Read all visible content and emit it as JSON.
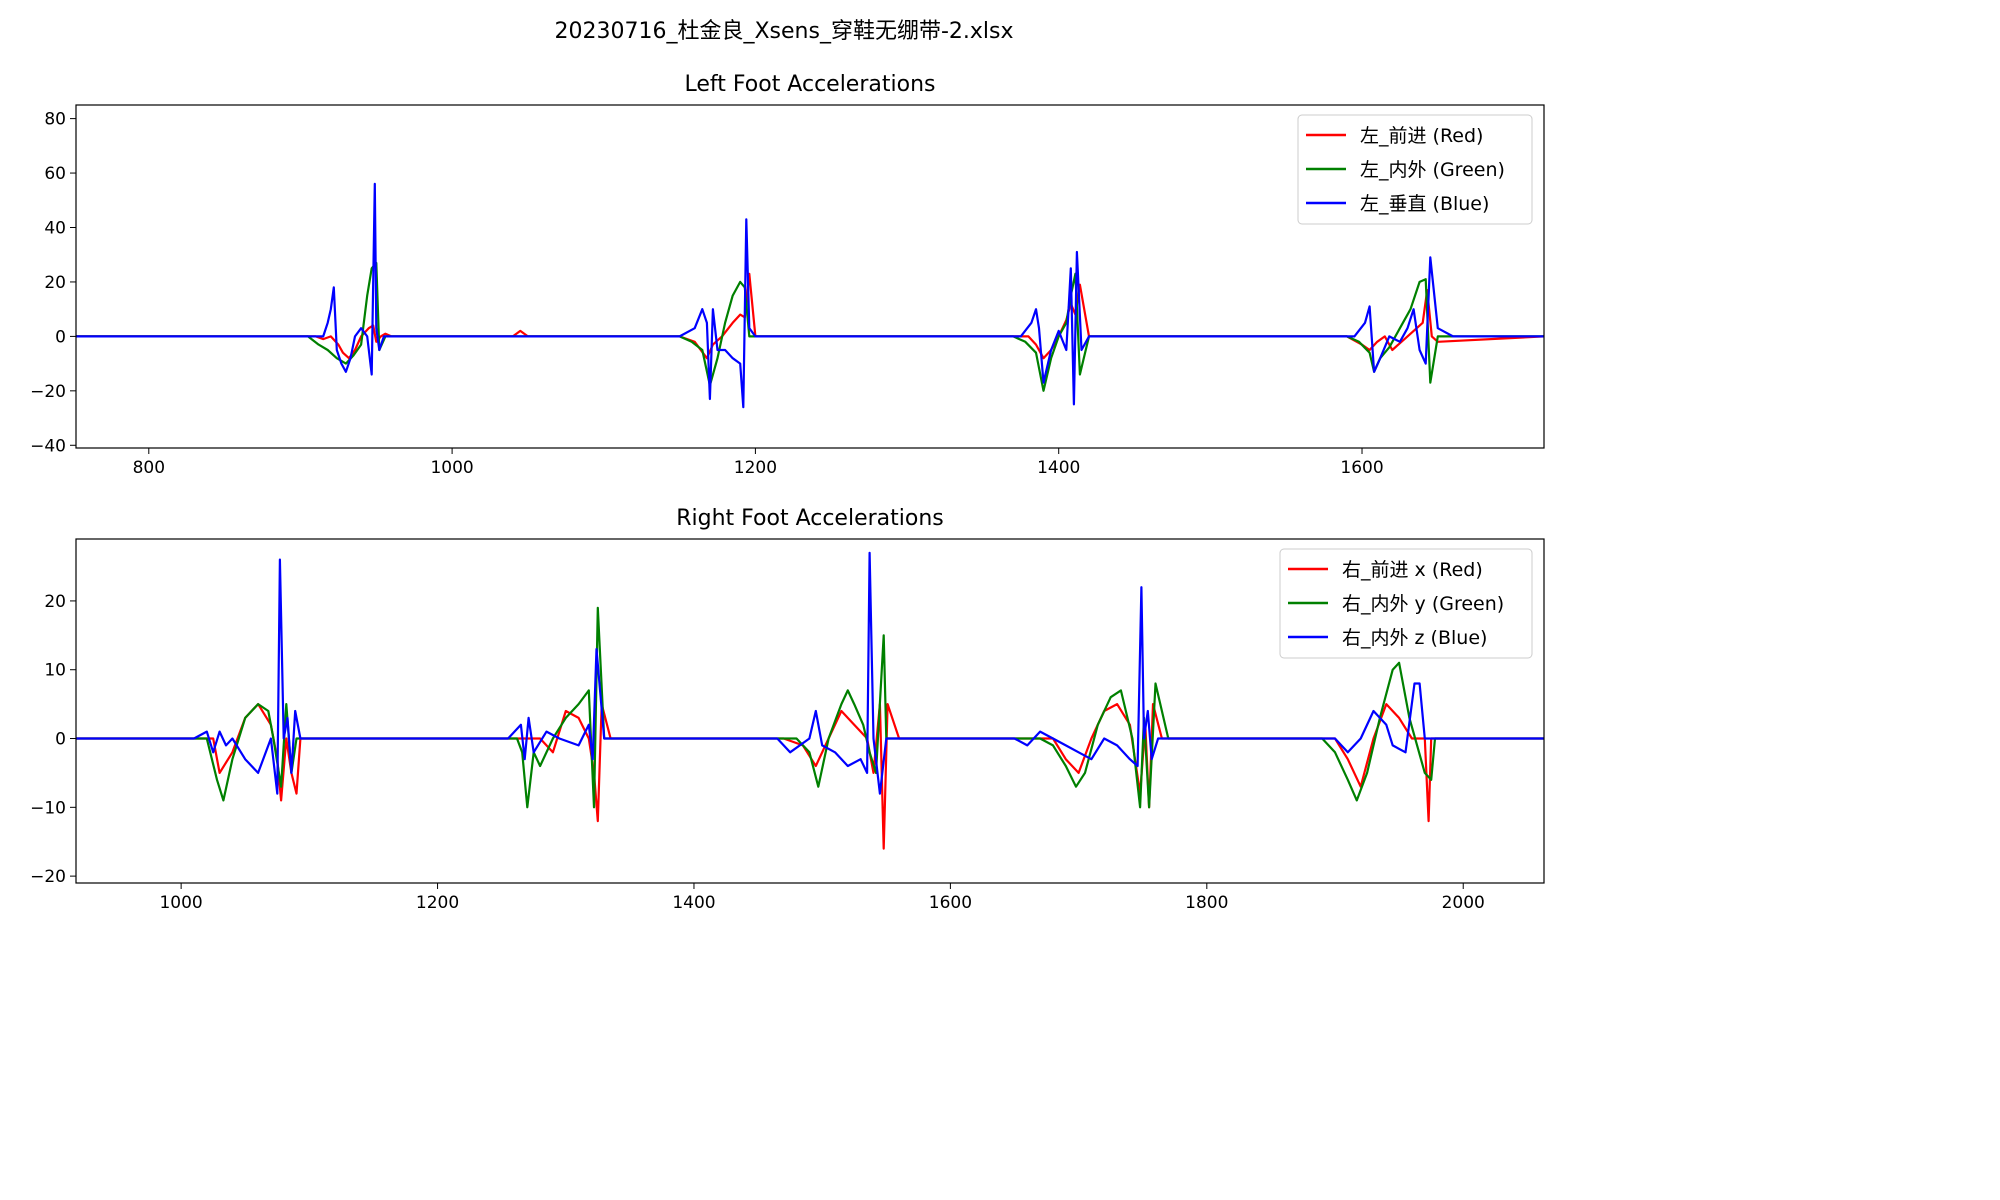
{
  "figure": {
    "suptitle": "20230716_杜金良_Xsens_穿鞋无绷带-2.xlsx"
  },
  "chart_data": [
    {
      "type": "line",
      "title": "Left Foot Accelerations",
      "xlabel": "",
      "ylabel": "",
      "xlim": [
        752,
        1720
      ],
      "ylim": [
        -41,
        85
      ],
      "xticks": [
        800,
        1000,
        1200,
        1400,
        1600
      ],
      "yticks": [
        -40,
        -20,
        0,
        20,
        40,
        60,
        80
      ],
      "grid": false,
      "legend_position": "top-right",
      "series": [
        {
          "name": "左_前进 (Red)",
          "color": "#ff0000",
          "x": [
            752,
            910,
            915,
            920,
            925,
            928,
            932,
            936,
            940,
            945,
            948,
            950,
            953,
            956,
            960,
            1000,
            1040,
            1045,
            1050,
            1150,
            1160,
            1168,
            1172,
            1178,
            1185,
            1190,
            1193,
            1196,
            1200,
            1380,
            1385,
            1390,
            1395,
            1400,
            1405,
            1408,
            1411,
            1414,
            1420,
            1590,
            1600,
            1605,
            1610,
            1615,
            1620,
            1630,
            1640,
            1643,
            1646,
            1650,
            1720
          ],
          "y": [
            0,
            0,
            -1,
            0,
            -3,
            -6,
            -8,
            -5,
            0,
            3,
            4,
            -2,
            0,
            1,
            0,
            0,
            0,
            2,
            0,
            0,
            -2,
            -8,
            -3,
            0,
            5,
            8,
            7,
            23,
            0,
            0,
            -3,
            -8,
            -5,
            0,
            6,
            12,
            8,
            19,
            0,
            0,
            -3,
            -5,
            -2,
            0,
            -5,
            0,
            5,
            17,
            0,
            -2,
            0
          ]
        },
        {
          "name": "左_内外 (Green)",
          "color": "#008000",
          "x": [
            752,
            905,
            912,
            918,
            924,
            930,
            935,
            940,
            944,
            947,
            950,
            952,
            956,
            960,
            1150,
            1158,
            1165,
            1170,
            1175,
            1180,
            1185,
            1190,
            1193,
            1196,
            1200,
            1370,
            1378,
            1385,
            1390,
            1395,
            1400,
            1405,
            1408,
            1411,
            1414,
            1420,
            1590,
            1598,
            1605,
            1608,
            1612,
            1618,
            1625,
            1632,
            1638,
            1642,
            1645,
            1650,
            1720
          ],
          "y": [
            0,
            0,
            -3,
            -5,
            -8,
            -10,
            -7,
            -3,
            15,
            25,
            27,
            -5,
            0,
            0,
            0,
            -2,
            -5,
            -18,
            -8,
            5,
            15,
            20,
            18,
            0,
            0,
            0,
            -2,
            -6,
            -20,
            -8,
            0,
            5,
            15,
            23,
            -14,
            0,
            0,
            -2,
            -6,
            -13,
            -8,
            -4,
            3,
            10,
            20,
            21,
            -17,
            0,
            0
          ]
        },
        {
          "name": "左_垂直 (Blue)",
          "color": "#0000ff",
          "x": [
            752,
            915,
            918,
            920,
            922,
            924,
            927,
            930,
            933,
            936,
            940,
            944,
            947,
            949,
            950,
            952,
            955,
            960,
            1150,
            1160,
            1165,
            1168,
            1170,
            1172,
            1175,
            1180,
            1185,
            1190,
            1192,
            1194,
            1196,
            1200,
            1375,
            1382,
            1385,
            1387,
            1390,
            1395,
            1400,
            1405,
            1408,
            1410,
            1412,
            1415,
            1420,
            1595,
            1602,
            1605,
            1608,
            1612,
            1618,
            1625,
            1630,
            1634,
            1638,
            1642,
            1645,
            1650,
            1660,
            1720
          ],
          "y": [
            0,
            0,
            5,
            10,
            18,
            -5,
            -10,
            -13,
            -8,
            0,
            3,
            0,
            -14,
            56,
            3,
            -5,
            0,
            0,
            0,
            3,
            10,
            5,
            -23,
            10,
            -5,
            -5,
            -8,
            -10,
            -26,
            43,
            3,
            0,
            0,
            5,
            10,
            3,
            -17,
            -5,
            2,
            -5,
            25,
            -25,
            31,
            -5,
            0,
            0,
            5,
            11,
            -13,
            -8,
            0,
            -2,
            3,
            10,
            -5,
            -10,
            29,
            3,
            0,
            0
          ]
        }
      ]
    },
    {
      "type": "line",
      "title": "Right Foot Accelerations",
      "xlabel": "",
      "ylabel": "",
      "xlim": [
        918,
        2063
      ],
      "ylim": [
        -21,
        29
      ],
      "xticks": [
        1000,
        1200,
        1400,
        1600,
        1800,
        2000
      ],
      "yticks": [
        -20,
        -10,
        0,
        10,
        20
      ],
      "grid": false,
      "legend_position": "top-right",
      "series": [
        {
          "name": "右_前进 x (Red)",
          "color": "#ff0000",
          "x": [
            918,
            1025,
            1030,
            1040,
            1050,
            1060,
            1070,
            1075,
            1078,
            1082,
            1086,
            1090,
            1093,
            1100,
            1270,
            1280,
            1290,
            1300,
            1310,
            1318,
            1322,
            1325,
            1328,
            1335,
            1470,
            1485,
            1495,
            1505,
            1515,
            1525,
            1535,
            1540,
            1545,
            1548,
            1551,
            1560,
            1680,
            1690,
            1700,
            1710,
            1720,
            1730,
            1740,
            1748,
            1752,
            1755,
            1758,
            1765,
            1900,
            1910,
            1920,
            1930,
            1940,
            1950,
            1960,
            1970,
            1973,
            1975,
            1980,
            2063
          ],
          "y": [
            0,
            0,
            -5,
            -2,
            3,
            5,
            2,
            -3,
            -9,
            0,
            -5,
            -8,
            0,
            0,
            0,
            0,
            -2,
            4,
            3,
            0,
            -5,
            -12,
            5,
            0,
            0,
            -1,
            -4,
            0,
            4,
            2,
            0,
            -5,
            5,
            -16,
            5,
            0,
            0,
            -3,
            -5,
            0,
            4,
            5,
            2,
            -8,
            2,
            -10,
            5,
            0,
            0,
            -3,
            -7,
            0,
            5,
            3,
            0,
            0,
            -12,
            0,
            0,
            0
          ]
        },
        {
          "name": "右_内外 y (Green)",
          "color": "#008000",
          "x": [
            918,
            1020,
            1028,
            1033,
            1040,
            1050,
            1060,
            1068,
            1072,
            1078,
            1082,
            1086,
            1090,
            1100,
            1262,
            1266,
            1270,
            1275,
            1280,
            1290,
            1300,
            1310,
            1318,
            1322,
            1325,
            1330,
            1340,
            1470,
            1480,
            1490,
            1497,
            1505,
            1515,
            1520,
            1525,
            1532,
            1537,
            1542,
            1548,
            1550,
            1555,
            1560,
            1670,
            1680,
            1690,
            1698,
            1705,
            1715,
            1725,
            1733,
            1742,
            1748,
            1751,
            1755,
            1760,
            1770,
            1890,
            1900,
            1910,
            1917,
            1925,
            1935,
            1945,
            1950,
            1958,
            1970,
            1975,
            1978,
            2063
          ],
          "y": [
            0,
            0,
            -6,
            -9,
            -3,
            3,
            5,
            4,
            0,
            -7,
            5,
            -5,
            0,
            0,
            0,
            -2,
            -10,
            -2,
            -4,
            0,
            3,
            5,
            7,
            -10,
            19,
            0,
            0,
            0,
            0,
            -2,
            -7,
            0,
            5,
            7,
            5,
            2,
            -2,
            -5,
            15,
            0,
            0,
            0,
            0,
            -1,
            -4,
            -7,
            -5,
            2,
            6,
            7,
            0,
            -10,
            3,
            -10,
            8,
            0,
            0,
            -2,
            -6,
            -9,
            -5,
            3,
            10,
            11,
            3,
            -5,
            -6,
            0,
            0
          ]
        },
        {
          "name": "右_内外 z (Blue)",
          "color": "#0000ff",
          "x": [
            918,
            1010,
            1020,
            1025,
            1030,
            1035,
            1040,
            1050,
            1060,
            1070,
            1075,
            1077,
            1080,
            1083,
            1086,
            1089,
            1093,
            1100,
            1255,
            1265,
            1268,
            1271,
            1275,
            1285,
            1295,
            1310,
            1318,
            1321,
            1324,
            1330,
            1340,
            1440,
            1455,
            1465,
            1475,
            1490,
            1495,
            1500,
            1510,
            1520,
            1530,
            1535,
            1537,
            1540,
            1545,
            1550,
            1560,
            1650,
            1660,
            1665,
            1670,
            1680,
            1690,
            1700,
            1710,
            1720,
            1730,
            1740,
            1746,
            1749,
            1751,
            1754,
            1757,
            1762,
            1770,
            1870,
            1880,
            1890,
            1900,
            1910,
            1920,
            1930,
            1940,
            1945,
            1955,
            1962,
            1966,
            1970,
            1975,
            1978,
            2063
          ],
          "y": [
            0,
            0,
            1,
            -2,
            1,
            -1,
            0,
            -3,
            -5,
            0,
            -8,
            26,
            0,
            3,
            -5,
            4,
            0,
            0,
            0,
            2,
            -3,
            3,
            -2,
            1,
            0,
            -1,
            2,
            -3,
            13,
            0,
            0,
            0,
            0,
            0,
            -2,
            0,
            4,
            -1,
            -2,
            -4,
            -3,
            -5,
            27,
            0,
            -8,
            0,
            0,
            0,
            -1,
            0,
            1,
            0,
            -1,
            -2,
            -3,
            0,
            -1,
            -3,
            -4,
            22,
            0,
            4,
            -3,
            0,
            0,
            0,
            0,
            0,
            0,
            -2,
            0,
            4,
            2,
            -1,
            -2,
            8,
            8,
            0,
            0,
            0,
            0
          ]
        }
      ]
    }
  ]
}
